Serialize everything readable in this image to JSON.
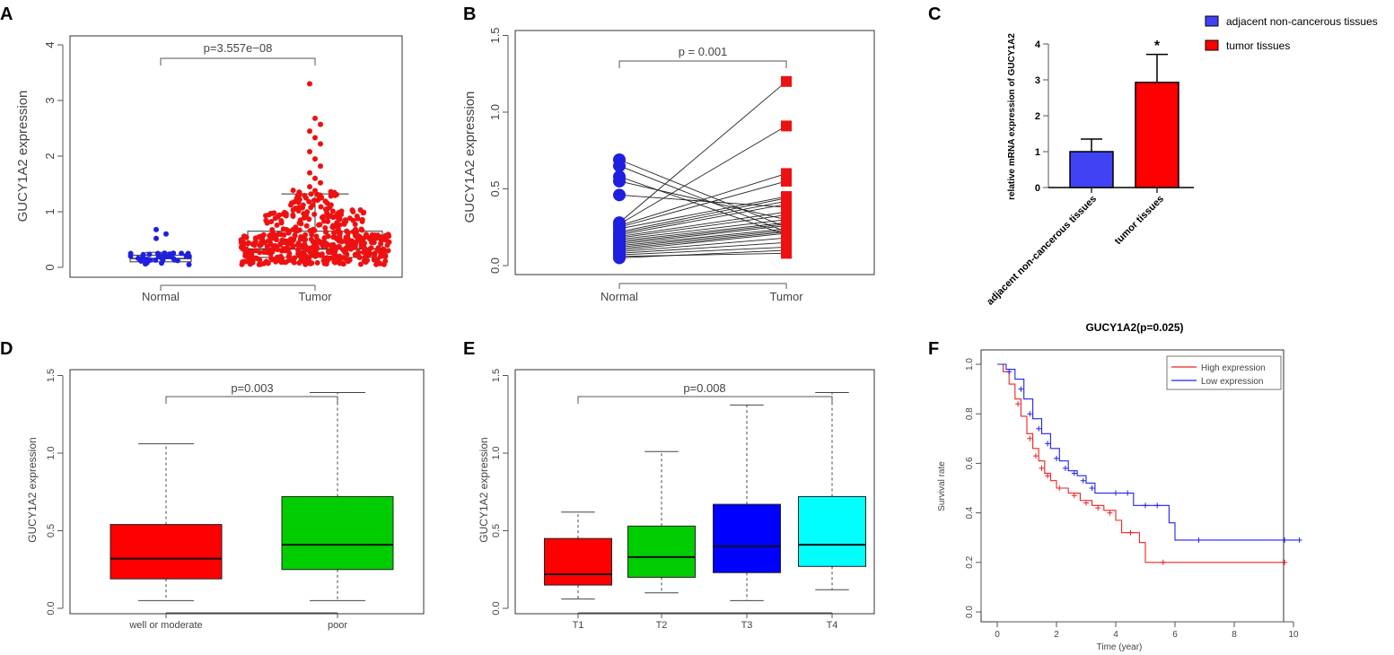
{
  "panels": {
    "A": {
      "label": "A",
      "chart_data": {
        "type": "beeswarm-boxplot",
        "ylabel": "GUCY1A2 expression",
        "ylim": [
          0,
          4
        ],
        "yticks": [
          "0",
          "1",
          "2",
          "3",
          "4"
        ],
        "categories": [
          "Normal",
          "Tumor"
        ],
        "pvalue": "p=3.557e−08",
        "colors": [
          "#1f1fe0",
          "#ee1111"
        ],
        "box": [
          {
            "q1": 0.1,
            "median": 0.16,
            "q3": 0.22,
            "whisker_high": 0.27
          },
          {
            "q1": 0.18,
            "median": 0.33,
            "q3": 0.65,
            "whisker_high": 1.32
          }
        ],
        "outliers_normal": [
          0.68,
          0.6,
          0.52
        ],
        "outliers_tumor": [
          3.3,
          2.68,
          2.57,
          2.45,
          2.33,
          2.22,
          2.08,
          1.95,
          1.82,
          1.7,
          1.6,
          1.52,
          1.45,
          1.38
        ]
      }
    },
    "B": {
      "label": "B",
      "chart_data": {
        "type": "paired-line",
        "ylabel": "GUCY1A2 expression",
        "ylim": [
          0,
          1.5
        ],
        "yticks": [
          "0.0",
          "0.5",
          "1.0",
          "1.5"
        ],
        "categories": [
          "Normal",
          "Tumor"
        ],
        "pvalue": "p = 0.001",
        "pairs": [
          [
            0.69,
            0.25
          ],
          [
            0.65,
            0.22
          ],
          [
            0.58,
            0.2
          ],
          [
            0.55,
            0.3
          ],
          [
            0.46,
            0.38
          ],
          [
            0.28,
            1.2
          ],
          [
            0.27,
            0.91
          ],
          [
            0.26,
            0.6
          ],
          [
            0.25,
            0.55
          ],
          [
            0.24,
            0.45
          ],
          [
            0.22,
            0.44
          ],
          [
            0.21,
            0.42
          ],
          [
            0.2,
            0.4
          ],
          [
            0.19,
            0.35
          ],
          [
            0.18,
            0.33
          ],
          [
            0.17,
            0.3
          ],
          [
            0.16,
            0.28
          ],
          [
            0.15,
            0.27
          ],
          [
            0.14,
            0.26
          ],
          [
            0.13,
            0.24
          ],
          [
            0.12,
            0.23
          ],
          [
            0.11,
            0.22
          ],
          [
            0.1,
            0.21
          ],
          [
            0.09,
            0.18
          ],
          [
            0.08,
            0.15
          ],
          [
            0.07,
            0.12
          ],
          [
            0.06,
            0.08
          ],
          [
            0.05,
            0.1
          ]
        ]
      }
    },
    "C": {
      "label": "C",
      "chart_data": {
        "type": "bar",
        "ylabel": "relative mRNA expression of GUCY1A2",
        "ylim": [
          0,
          4
        ],
        "yticks": [
          "0",
          "1",
          "2",
          "3",
          "4"
        ],
        "categories": [
          "adjacent non-cancerous tissues",
          "tumor tissues"
        ],
        "values": [
          1.0,
          2.93
        ],
        "errors": [
          0.35,
          0.78
        ],
        "colors": [
          "#4242f5",
          "#ff0000"
        ],
        "annotation": "*",
        "legend": [
          "adjacent non-cancerous tissues",
          "tumor tissues"
        ]
      }
    },
    "D": {
      "label": "D",
      "chart_data": {
        "type": "boxplot",
        "ylabel": "GUCY1A2 expression",
        "ylim": [
          0,
          1.5
        ],
        "yticks": [
          "0.0",
          "0.5",
          "1.0",
          "1.5"
        ],
        "categories": [
          "well or moderate",
          "poor"
        ],
        "pvalue": "p=0.003",
        "colors": [
          "#ff0000",
          "#00cc00"
        ],
        "boxes": [
          {
            "min": 0.05,
            "q1": 0.19,
            "median": 0.32,
            "q3": 0.54,
            "max": 1.06
          },
          {
            "min": 0.05,
            "q1": 0.25,
            "median": 0.41,
            "q3": 0.72,
            "max": 1.39
          }
        ]
      }
    },
    "E": {
      "label": "E",
      "chart_data": {
        "type": "boxplot",
        "ylabel": "GUCY1A2 expression",
        "ylim": [
          0,
          1.5
        ],
        "yticks": [
          "0.0",
          "0.5",
          "1.0",
          "1.5"
        ],
        "categories": [
          "T1",
          "T2",
          "T3",
          "T4"
        ],
        "pvalue": "p=0.008",
        "colors": [
          "#ff0000",
          "#00cc00",
          "#0000ff",
          "#00ffff"
        ],
        "boxes": [
          {
            "min": 0.06,
            "q1": 0.15,
            "median": 0.22,
            "q3": 0.45,
            "max": 0.62
          },
          {
            "min": 0.1,
            "q1": 0.2,
            "median": 0.33,
            "q3": 0.53,
            "max": 1.01
          },
          {
            "min": 0.05,
            "q1": 0.23,
            "median": 0.4,
            "q3": 0.67,
            "max": 1.31
          },
          {
            "min": 0.12,
            "q1": 0.27,
            "median": 0.41,
            "q3": 0.72,
            "max": 1.39
          }
        ]
      }
    },
    "F": {
      "label": "F",
      "chart_data": {
        "type": "survival",
        "title": "GUCY1A2(p=0.025)",
        "xlabel": "Time (year)",
        "ylabel": "Survival rate",
        "xlim": [
          0,
          10.5
        ],
        "ylim": [
          0,
          1.0
        ],
        "xticks": [
          "0",
          "2",
          "4",
          "6",
          "8",
          "10"
        ],
        "yticks": [
          "0.0",
          "0.2",
          "0.4",
          "0.6",
          "0.8",
          "1.0"
        ],
        "legend": [
          "High expression",
          "Low expression"
        ],
        "series": [
          {
            "name": "High expression",
            "color": "#ee2222",
            "steps": [
              [
                0,
                1.0
              ],
              [
                0.2,
                0.97
              ],
              [
                0.4,
                0.92
              ],
              [
                0.6,
                0.86
              ],
              [
                0.8,
                0.79
              ],
              [
                1.0,
                0.72
              ],
              [
                1.2,
                0.66
              ],
              [
                1.4,
                0.61
              ],
              [
                1.6,
                0.56
              ],
              [
                1.8,
                0.53
              ],
              [
                2.0,
                0.5
              ],
              [
                2.4,
                0.48
              ],
              [
                2.8,
                0.45
              ],
              [
                3.2,
                0.43
              ],
              [
                3.6,
                0.41
              ],
              [
                4.0,
                0.37
              ],
              [
                4.2,
                0.32
              ],
              [
                4.8,
                0.28
              ],
              [
                5.0,
                0.2
              ],
              [
                9.7,
                0.2
              ]
            ],
            "censors": [
              [
                0.7,
                0.84
              ],
              [
                1.1,
                0.7
              ],
              [
                1.3,
                0.63
              ],
              [
                1.5,
                0.58
              ],
              [
                1.7,
                0.55
              ],
              [
                2.1,
                0.5
              ],
              [
                2.6,
                0.47
              ],
              [
                3.0,
                0.44
              ],
              [
                3.4,
                0.42
              ],
              [
                3.8,
                0.4
              ],
              [
                4.5,
                0.32
              ],
              [
                5.6,
                0.2
              ],
              [
                9.7,
                0.2
              ]
            ]
          },
          {
            "name": "Low expression",
            "color": "#2222ee",
            "steps": [
              [
                0,
                1.0
              ],
              [
                0.3,
                0.98
              ],
              [
                0.6,
                0.94
              ],
              [
                0.9,
                0.86
              ],
              [
                1.2,
                0.78
              ],
              [
                1.5,
                0.72
              ],
              [
                1.8,
                0.66
              ],
              [
                2.1,
                0.61
              ],
              [
                2.4,
                0.57
              ],
              [
                2.7,
                0.55
              ],
              [
                3.0,
                0.52
              ],
              [
                3.3,
                0.48
              ],
              [
                4.6,
                0.43
              ],
              [
                5.8,
                0.36
              ],
              [
                6.0,
                0.29
              ],
              [
                10.2,
                0.29
              ]
            ],
            "censors": [
              [
                0.4,
                0.97
              ],
              [
                0.8,
                0.9
              ],
              [
                1.1,
                0.8
              ],
              [
                1.4,
                0.74
              ],
              [
                1.7,
                0.68
              ],
              [
                2.0,
                0.62
              ],
              [
                2.3,
                0.58
              ],
              [
                2.6,
                0.56
              ],
              [
                2.9,
                0.53
              ],
              [
                3.2,
                0.5
              ],
              [
                4.0,
                0.48
              ],
              [
                4.4,
                0.48
              ],
              [
                5.0,
                0.43
              ],
              [
                5.4,
                0.43
              ],
              [
                6.8,
                0.29
              ],
              [
                9.7,
                0.29
              ],
              [
                10.2,
                0.29
              ]
            ]
          }
        ]
      }
    }
  }
}
